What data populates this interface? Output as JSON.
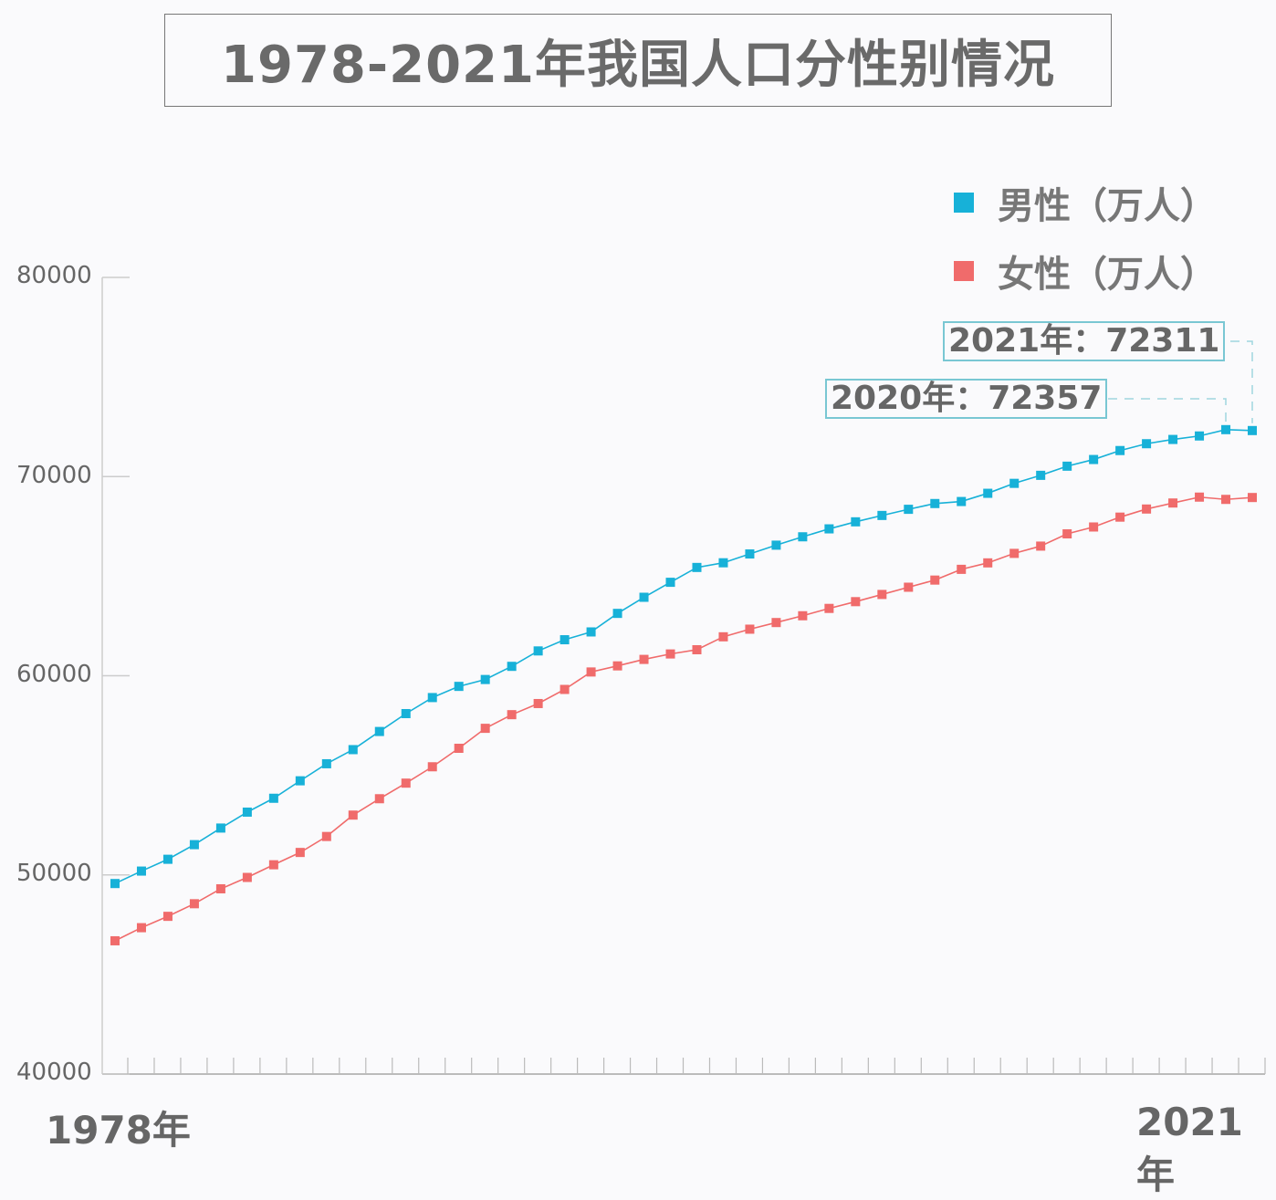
{
  "chart_data": {
    "type": "line",
    "title": "1978-2021年我国人口分性别情况",
    "x": [
      1978,
      1979,
      1980,
      1981,
      1982,
      1983,
      1984,
      1985,
      1986,
      1987,
      1988,
      1989,
      1990,
      1991,
      1992,
      1993,
      1994,
      1995,
      1996,
      1997,
      1998,
      1999,
      2000,
      2001,
      2002,
      2003,
      2004,
      2005,
      2006,
      2007,
      2008,
      2009,
      2010,
      2011,
      2012,
      2013,
      2014,
      2015,
      2016,
      2017,
      2018,
      2019,
      2020,
      2021
    ],
    "x_tick_labels": [
      "1978年",
      "2021年"
    ],
    "ylim": [
      40000,
      80000
    ],
    "y_ticks": [
      "80000",
      "70000",
      "60000",
      "50000",
      "40000"
    ],
    "legend_position": "top-right",
    "series": [
      {
        "name": "男性（万人）",
        "color": "#17b1d8",
        "values": [
          49567,
          50192,
          50785,
          51519,
          52352,
          53152,
          53848,
          54725,
          55581,
          56290,
          57201,
          58099,
          58904,
          59466,
          59811,
          60472,
          61246,
          61808,
          62200,
          63131,
          63940,
          64692,
          65437,
          65672,
          66115,
          66556,
          66976,
          67375,
          67728,
          68048,
          68357,
          68647,
          68748,
          69161,
          69660,
          70063,
          70522,
          70857,
          71307,
          71650,
          71864,
          72039,
          72357,
          72311
        ]
      },
      {
        "name": "女性（万人）",
        "color": "#f06b6b",
        "values": [
          46692,
          47350,
          47920,
          48553,
          49302,
          49873,
          50509,
          51127,
          51929,
          53003,
          53825,
          54608,
          55429,
          56357,
          57360,
          58045,
          58604,
          59313,
          60189,
          60495,
          60821,
          61094,
          61306,
          61955,
          62338,
          62671,
          63012,
          63381,
          63720,
          64081,
          64445,
          64803,
          65343,
          65667,
          66144,
          66509,
          67124,
          67469,
          67964,
          68371,
          68673,
          68969,
          68855,
          68949
        ]
      }
    ],
    "annotations": [
      {
        "text": "2021年：72311"
      },
      {
        "text": "2020年：72357"
      }
    ]
  }
}
